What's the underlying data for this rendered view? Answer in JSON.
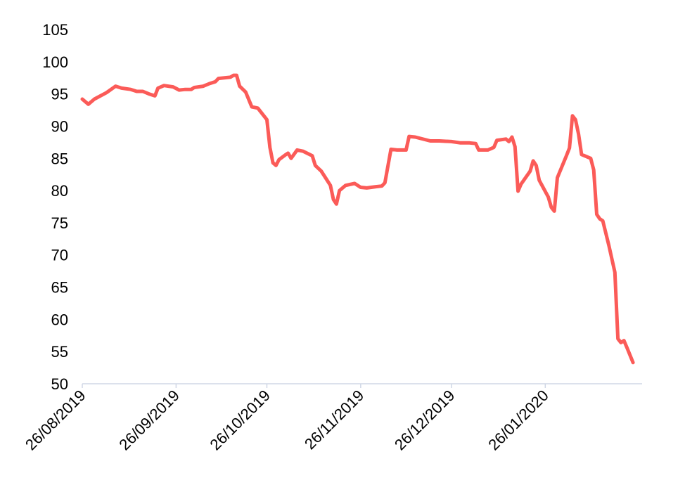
{
  "chart_data": {
    "type": "line",
    "title": "",
    "xlabel": "",
    "ylabel": "",
    "ylim": [
      50,
      105
    ],
    "yticks": [
      "50",
      "55",
      "60",
      "65",
      "70",
      "75",
      "80",
      "85",
      "90",
      "95",
      "100",
      "105"
    ],
    "xlim": [
      "2019-08-26",
      "2020-02-27"
    ],
    "xticks": [
      {
        "date": "2019-08-26",
        "label": "26/08/2019"
      },
      {
        "date": "2019-09-26",
        "label": "26/09/2019"
      },
      {
        "date": "2019-10-26",
        "label": "26/10/2019"
      },
      {
        "date": "2019-11-26",
        "label": "26/11/2019"
      },
      {
        "date": "2019-12-26",
        "label": "26/12/2019"
      },
      {
        "date": "2020-01-26",
        "label": "26/01/2020"
      }
    ],
    "grid": false,
    "series": [
      {
        "color": "#fb5b58",
        "points": [
          [
            "2019-08-26",
            94.2
          ],
          [
            "2019-08-28",
            93.4
          ],
          [
            "2019-08-30",
            94.2
          ],
          [
            "2019-09-03",
            95.2
          ],
          [
            "2019-09-06",
            96.2
          ],
          [
            "2019-09-08",
            95.9
          ],
          [
            "2019-09-11",
            95.7
          ],
          [
            "2019-09-13",
            95.4
          ],
          [
            "2019-09-15",
            95.4
          ],
          [
            "2019-09-17",
            95.0
          ],
          [
            "2019-09-19",
            94.7
          ],
          [
            "2019-09-20",
            95.9
          ],
          [
            "2019-09-22",
            96.3
          ],
          [
            "2019-09-25",
            96.1
          ],
          [
            "2019-09-27",
            95.6
          ],
          [
            "2019-09-29",
            95.7
          ],
          [
            "2019-10-01",
            95.7
          ],
          [
            "2019-10-02",
            96.0
          ],
          [
            "2019-10-05",
            96.2
          ],
          [
            "2019-10-07",
            96.6
          ],
          [
            "2019-10-09",
            96.9
          ],
          [
            "2019-10-10",
            97.4
          ],
          [
            "2019-10-14",
            97.6
          ],
          [
            "2019-10-15",
            97.9
          ],
          [
            "2019-10-16",
            97.9
          ],
          [
            "2019-10-17",
            96.2
          ],
          [
            "2019-10-19",
            95.3
          ],
          [
            "2019-10-21",
            93.0
          ],
          [
            "2019-10-23",
            92.8
          ],
          [
            "2019-10-25",
            91.6
          ],
          [
            "2019-10-26",
            91.0
          ],
          [
            "2019-10-27",
            86.7
          ],
          [
            "2019-10-28",
            84.3
          ],
          [
            "2019-10-29",
            83.9
          ],
          [
            "2019-10-30",
            84.8
          ],
          [
            "2019-11-01",
            85.5
          ],
          [
            "2019-11-02",
            85.8
          ],
          [
            "2019-11-03",
            85.0
          ],
          [
            "2019-11-05",
            86.3
          ],
          [
            "2019-11-07",
            86.1
          ],
          [
            "2019-11-10",
            85.4
          ],
          [
            "2019-11-11",
            83.9
          ],
          [
            "2019-11-13",
            83.0
          ],
          [
            "2019-11-16",
            80.8
          ],
          [
            "2019-11-17",
            78.6
          ],
          [
            "2019-11-18",
            77.9
          ],
          [
            "2019-11-19",
            80.0
          ],
          [
            "2019-11-21",
            80.8
          ],
          [
            "2019-11-24",
            81.1
          ],
          [
            "2019-11-26",
            80.5
          ],
          [
            "2019-11-28",
            80.4
          ],
          [
            "2019-12-01",
            80.6
          ],
          [
            "2019-12-03",
            80.7
          ],
          [
            "2019-12-04",
            81.2
          ],
          [
            "2019-12-06",
            86.4
          ],
          [
            "2019-12-08",
            86.3
          ],
          [
            "2019-12-11",
            86.3
          ],
          [
            "2019-12-12",
            88.4
          ],
          [
            "2019-12-14",
            88.3
          ],
          [
            "2019-12-19",
            87.7
          ],
          [
            "2019-12-22",
            87.7
          ],
          [
            "2019-12-26",
            87.6
          ],
          [
            "2019-12-29",
            87.4
          ],
          [
            "2020-01-01",
            87.4
          ],
          [
            "2020-01-03",
            87.3
          ],
          [
            "2020-01-04",
            86.3
          ],
          [
            "2020-01-07",
            86.3
          ],
          [
            "2020-01-09",
            86.7
          ],
          [
            "2020-01-10",
            87.8
          ],
          [
            "2020-01-13",
            88.0
          ],
          [
            "2020-01-14",
            87.6
          ],
          [
            "2020-01-15",
            88.3
          ],
          [
            "2020-01-16",
            86.8
          ],
          [
            "2020-01-17",
            79.9
          ],
          [
            "2020-01-18",
            81.0
          ],
          [
            "2020-01-21",
            83.0
          ],
          [
            "2020-01-22",
            84.6
          ],
          [
            "2020-01-23",
            83.9
          ],
          [
            "2020-01-24",
            81.6
          ],
          [
            "2020-01-27",
            79.0
          ],
          [
            "2020-01-28",
            77.4
          ],
          [
            "2020-01-29",
            76.8
          ],
          [
            "2020-01-30",
            82.0
          ],
          [
            "2020-02-02",
            85.4
          ],
          [
            "2020-02-03",
            86.6
          ],
          [
            "2020-02-04",
            91.6
          ],
          [
            "2020-02-05",
            91.0
          ],
          [
            "2020-02-06",
            88.8
          ],
          [
            "2020-02-07",
            85.6
          ],
          [
            "2020-02-10",
            85.0
          ],
          [
            "2020-02-11",
            83.2
          ],
          [
            "2020-02-12",
            76.3
          ],
          [
            "2020-02-13",
            75.6
          ],
          [
            "2020-02-14",
            75.3
          ],
          [
            "2020-02-16",
            71.5
          ],
          [
            "2020-02-18",
            67.3
          ],
          [
            "2020-02-19",
            57.0
          ],
          [
            "2020-02-20",
            56.4
          ],
          [
            "2020-02-21",
            56.7
          ],
          [
            "2020-02-22",
            55.6
          ],
          [
            "2020-02-24",
            53.3
          ]
        ]
      }
    ]
  }
}
